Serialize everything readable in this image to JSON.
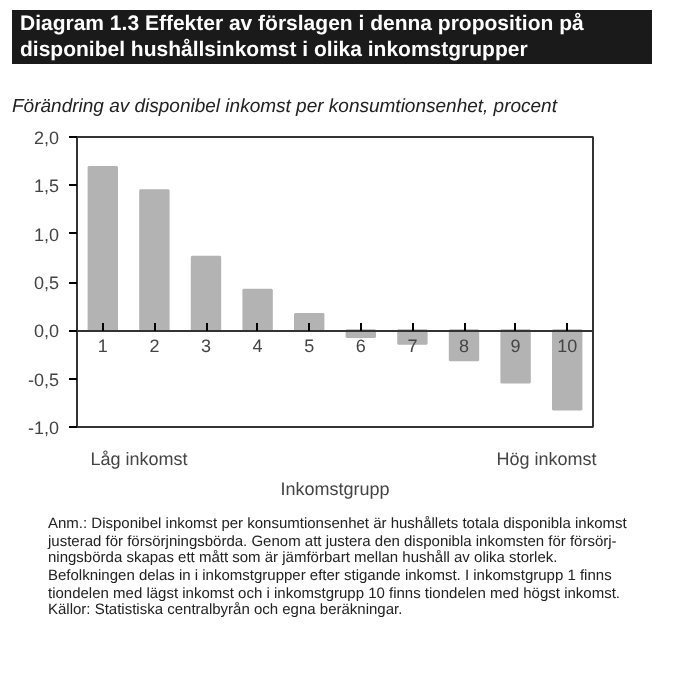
{
  "chart_data": {
    "type": "bar",
    "title": "Diagram 1.3 Effekter av förslagen i denna proposition på disponibel hushållsinkomst i olika inkomstgrupper",
    "subtitle": "Förändring av disponibel inkomst per konsumtionsenhet, procent",
    "xlabel": "Inkomstgrupp",
    "categories": [
      "1",
      "2",
      "3",
      "4",
      "5",
      "6",
      "7",
      "8",
      "9",
      "10"
    ],
    "values": [
      1.69,
      1.45,
      0.76,
      0.42,
      0.17,
      -0.07,
      -0.14,
      -0.31,
      -0.54,
      -0.82
    ],
    "color": "#b3b3b3",
    "ylim": [
      -1.0,
      2.0
    ],
    "yticks": [
      {
        "value": -1.0,
        "label": "-1,0"
      },
      {
        "value": -0.5,
        "label": "-0,5"
      },
      {
        "value": 0.0,
        "label": "0,0"
      },
      {
        "value": 0.5,
        "label": "0,5"
      },
      {
        "value": 1.0,
        "label": "1,0"
      },
      {
        "value": 1.5,
        "label": "1,5"
      },
      {
        "value": 2.0,
        "label": "2,0"
      }
    ],
    "grid": false,
    "annotations": [
      "Låg inkomst",
      "Hög inkomst",
      "Anm.: Disponibel inkomst per konsumtionsenhet är hushållets totala disponibla inkomst justerad för försörjningsbörda. Genom att justera den disponibla inkomsten för försörj-ningsbörda skapas ett mått som är jämförbart mellan hushåll av olika storlek. Befolkningen delas in i inkomstgrupper efter stigande inkomst. I inkomstgrupp 1 finns tiondelen med lägst inkomst och i inkomstgrupp 10 finns tiondelen med högst inkomst.",
      "Källor: Statistiska centralbyrån och egna beräkningar."
    ]
  }
}
